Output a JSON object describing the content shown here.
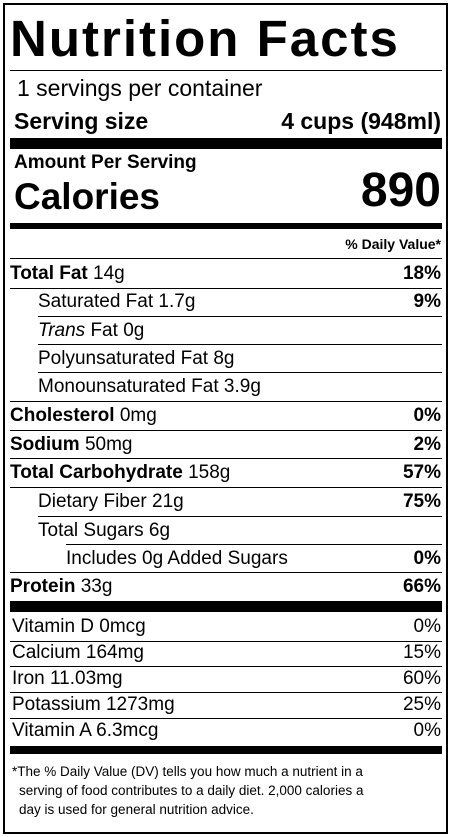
{
  "title": "Nutrition Facts",
  "servings_per_container": "1 servings per container",
  "serving_size_label": "Serving size",
  "serving_size_value": "4 cups (948ml)",
  "amount_per_serving": "Amount Per Serving",
  "calories_label": "Calories",
  "calories_value": "890",
  "dv_header": "% Daily Value*",
  "nutrients": {
    "total_fat": {
      "name": "Total Fat",
      "amount": "14g",
      "dv": "18%"
    },
    "saturated_fat": {
      "name": "Saturated Fat",
      "amount": "1.7g",
      "dv": "9%"
    },
    "trans_fat": {
      "name_italic": "Trans",
      "name": "Fat",
      "amount": "0g"
    },
    "poly_fat": {
      "name": "Polyunsaturated Fat",
      "amount": "8g"
    },
    "mono_fat": {
      "name": "Monounsaturated Fat",
      "amount": "3.9g"
    },
    "cholesterol": {
      "name": "Cholesterol",
      "amount": "0mg",
      "dv": "0%"
    },
    "sodium": {
      "name": "Sodium",
      "amount": "50mg",
      "dv": "2%"
    },
    "total_carb": {
      "name": "Total Carbohydrate",
      "amount": "158g",
      "dv": "57%"
    },
    "fiber": {
      "name": "Dietary Fiber",
      "amount": "21g",
      "dv": "75%"
    },
    "sugars": {
      "name": "Total Sugars",
      "amount": "6g"
    },
    "added_sugars": {
      "name": "Includes 0g Added Sugars",
      "dv": "0%"
    },
    "protein": {
      "name": "Protein",
      "amount": "33g",
      "dv": "66%"
    }
  },
  "vitamins": [
    {
      "name": "Vitamin D 0mcg",
      "dv": "0%"
    },
    {
      "name": "Calcium 164mg",
      "dv": "15%"
    },
    {
      "name": "Iron 11.03mg",
      "dv": "60%"
    },
    {
      "name": "Potassium 1273mg",
      "dv": "25%"
    },
    {
      "name": "Vitamin A 6.3mcg",
      "dv": "0%"
    }
  ],
  "footnote": [
    "*The % Daily Value (DV) tells you how much a nutrient in a",
    "serving of food contributes to a daily diet. 2,000 calories a",
    "day is used for general nutrition advice."
  ]
}
